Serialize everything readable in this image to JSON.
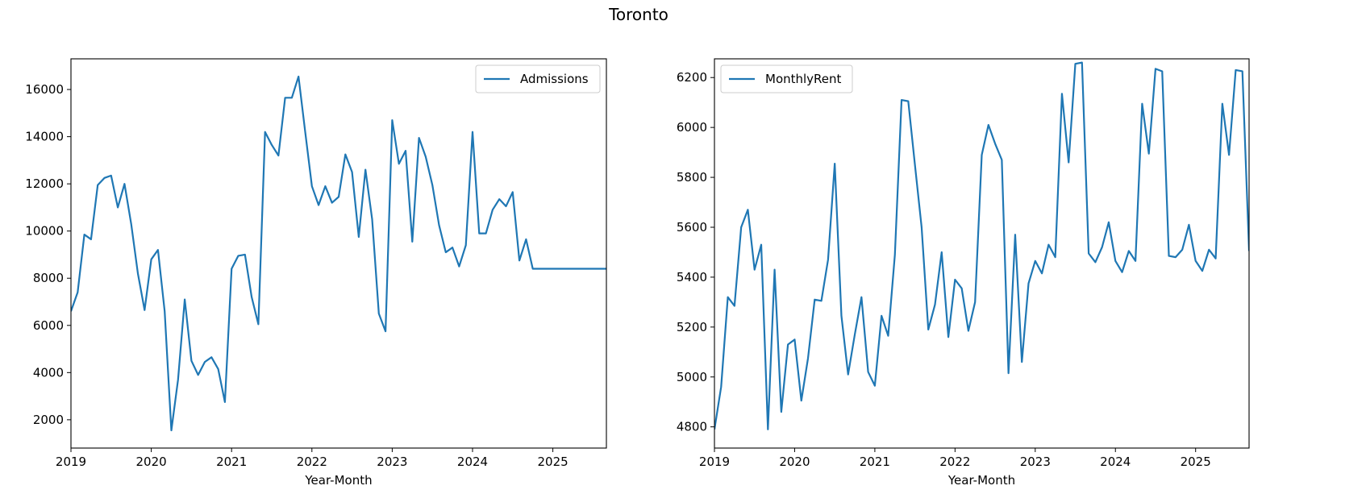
{
  "suptitle": "Toronto",
  "chart_data": [
    {
      "type": "line",
      "title": "",
      "xlabel": "Year-Month",
      "ylabel": "",
      "xlim": [
        "2019-01",
        "2025-09"
      ],
      "ylim": [
        800,
        17300
      ],
      "xticks": [
        "2019",
        "2020",
        "2021",
        "2022",
        "2023",
        "2024",
        "2025"
      ],
      "yticks": [
        2000,
        4000,
        6000,
        8000,
        10000,
        12000,
        14000,
        16000
      ],
      "grid": false,
      "legend": "upper right",
      "color": "#1f77b4",
      "series": [
        {
          "name": "Admissions",
          "x": [
            "2019-01",
            "2019-02",
            "2019-03",
            "2019-04",
            "2019-05",
            "2019-06",
            "2019-07",
            "2019-08",
            "2019-09",
            "2019-10",
            "2019-11",
            "2019-12",
            "2020-01",
            "2020-02",
            "2020-03",
            "2020-04",
            "2020-05",
            "2020-06",
            "2020-07",
            "2020-08",
            "2020-09",
            "2020-10",
            "2020-11",
            "2020-12",
            "2021-01",
            "2021-02",
            "2021-03",
            "2021-04",
            "2021-05",
            "2021-06",
            "2021-07",
            "2021-08",
            "2021-09",
            "2021-10",
            "2021-11",
            "2021-12",
            "2022-01",
            "2022-02",
            "2022-03",
            "2022-04",
            "2022-05",
            "2022-06",
            "2022-07",
            "2022-08",
            "2022-09",
            "2022-10",
            "2022-11",
            "2022-12",
            "2023-01",
            "2023-02",
            "2023-03",
            "2023-04",
            "2023-05",
            "2023-06",
            "2023-07",
            "2023-08",
            "2023-09",
            "2023-10",
            "2023-11",
            "2023-12",
            "2024-01",
            "2024-02",
            "2024-03",
            "2024-04",
            "2024-05",
            "2024-06",
            "2024-07",
            "2024-08",
            "2024-09",
            "2024-10",
            "2024-11",
            "2024-12",
            "2025-01",
            "2025-02",
            "2025-03",
            "2025-04",
            "2025-05",
            "2025-06",
            "2025-07",
            "2025-08",
            "2025-09"
          ],
          "values": [
            6600,
            7400,
            9850,
            9650,
            11950,
            12250,
            12350,
            11000,
            12000,
            10300,
            8200,
            6650,
            8800,
            9200,
            6600,
            1550,
            3700,
            7100,
            4500,
            3900,
            4450,
            4650,
            4150,
            2750,
            8400,
            8950,
            9000,
            7200,
            6050,
            14200,
            13650,
            13200,
            15650,
            15650,
            16550,
            14200,
            11900,
            11100,
            11900,
            11200,
            11450,
            13250,
            12500,
            9750,
            12600,
            10500,
            6500,
            5750,
            14700,
            12850,
            13400,
            9550,
            13950,
            13150,
            11950,
            10250,
            9100,
            9300,
            8500,
            9400,
            14200,
            9900,
            9900,
            10900,
            11350,
            11050,
            11650,
            8750,
            9650,
            8400,
            8400,
            8400,
            8400,
            8400,
            8400,
            8400,
            8400,
            8400,
            8400,
            8400,
            8400
          ]
        }
      ]
    },
    {
      "type": "line",
      "title": "",
      "xlabel": "Year-Month",
      "ylabel": "",
      "xlim": [
        "2019-01",
        "2025-09"
      ],
      "ylim": [
        4715,
        6275
      ],
      "xticks": [
        "2019",
        "2020",
        "2021",
        "2022",
        "2023",
        "2024",
        "2025"
      ],
      "yticks": [
        4800,
        5000,
        5200,
        5400,
        5600,
        5800,
        6000,
        6200
      ],
      "grid": false,
      "legend": "upper left",
      "color": "#1f77b4",
      "series": [
        {
          "name": "MonthlyRent",
          "x": [
            "2019-01",
            "2019-02",
            "2019-03",
            "2019-04",
            "2019-05",
            "2019-06",
            "2019-07",
            "2019-08",
            "2019-09",
            "2019-10",
            "2019-11",
            "2019-12",
            "2020-01",
            "2020-02",
            "2020-03",
            "2020-04",
            "2020-05",
            "2020-06",
            "2020-07",
            "2020-08",
            "2020-09",
            "2020-10",
            "2020-11",
            "2020-12",
            "2021-01",
            "2021-02",
            "2021-03",
            "2021-04",
            "2021-05",
            "2021-06",
            "2021-07",
            "2021-08",
            "2021-09",
            "2021-10",
            "2021-11",
            "2021-12",
            "2022-01",
            "2022-02",
            "2022-03",
            "2022-04",
            "2022-05",
            "2022-06",
            "2022-07",
            "2022-08",
            "2022-09",
            "2022-10",
            "2022-11",
            "2022-12",
            "2023-01",
            "2023-02",
            "2023-03",
            "2023-04",
            "2023-05",
            "2023-06",
            "2023-07",
            "2023-08",
            "2023-09",
            "2023-10",
            "2023-11",
            "2023-12",
            "2024-01",
            "2024-02",
            "2024-03",
            "2024-04",
            "2024-05",
            "2024-06",
            "2024-07",
            "2024-08",
            "2024-09",
            "2024-10",
            "2024-11",
            "2024-12",
            "2025-01",
            "2025-02",
            "2025-03",
            "2025-04",
            "2025-05",
            "2025-06",
            "2025-07",
            "2025-08",
            "2025-09"
          ],
          "values": [
            4790,
            4960,
            5320,
            5285,
            5600,
            5670,
            5430,
            5530,
            4790,
            5430,
            4860,
            5130,
            5150,
            4905,
            5075,
            5310,
            5305,
            5470,
            5855,
            5245,
            5010,
            5170,
            5320,
            5020,
            4965,
            5245,
            5165,
            5490,
            6110,
            6105,
            5850,
            5600,
            5190,
            5290,
            5500,
            5160,
            5390,
            5355,
            5185,
            5300,
            5890,
            6010,
            5935,
            5870,
            5015,
            5570,
            5060,
            5375,
            5465,
            5415,
            5530,
            5480,
            6135,
            5860,
            6255,
            6260,
            5495,
            5460,
            5520,
            5620,
            5465,
            5420,
            5505,
            5465,
            6095,
            5895,
            6235,
            6225,
            5485,
            5480,
            5510,
            5610,
            5465,
            5425,
            5510,
            5475,
            6095,
            5890,
            6230,
            6225,
            5505
          ]
        }
      ]
    }
  ]
}
